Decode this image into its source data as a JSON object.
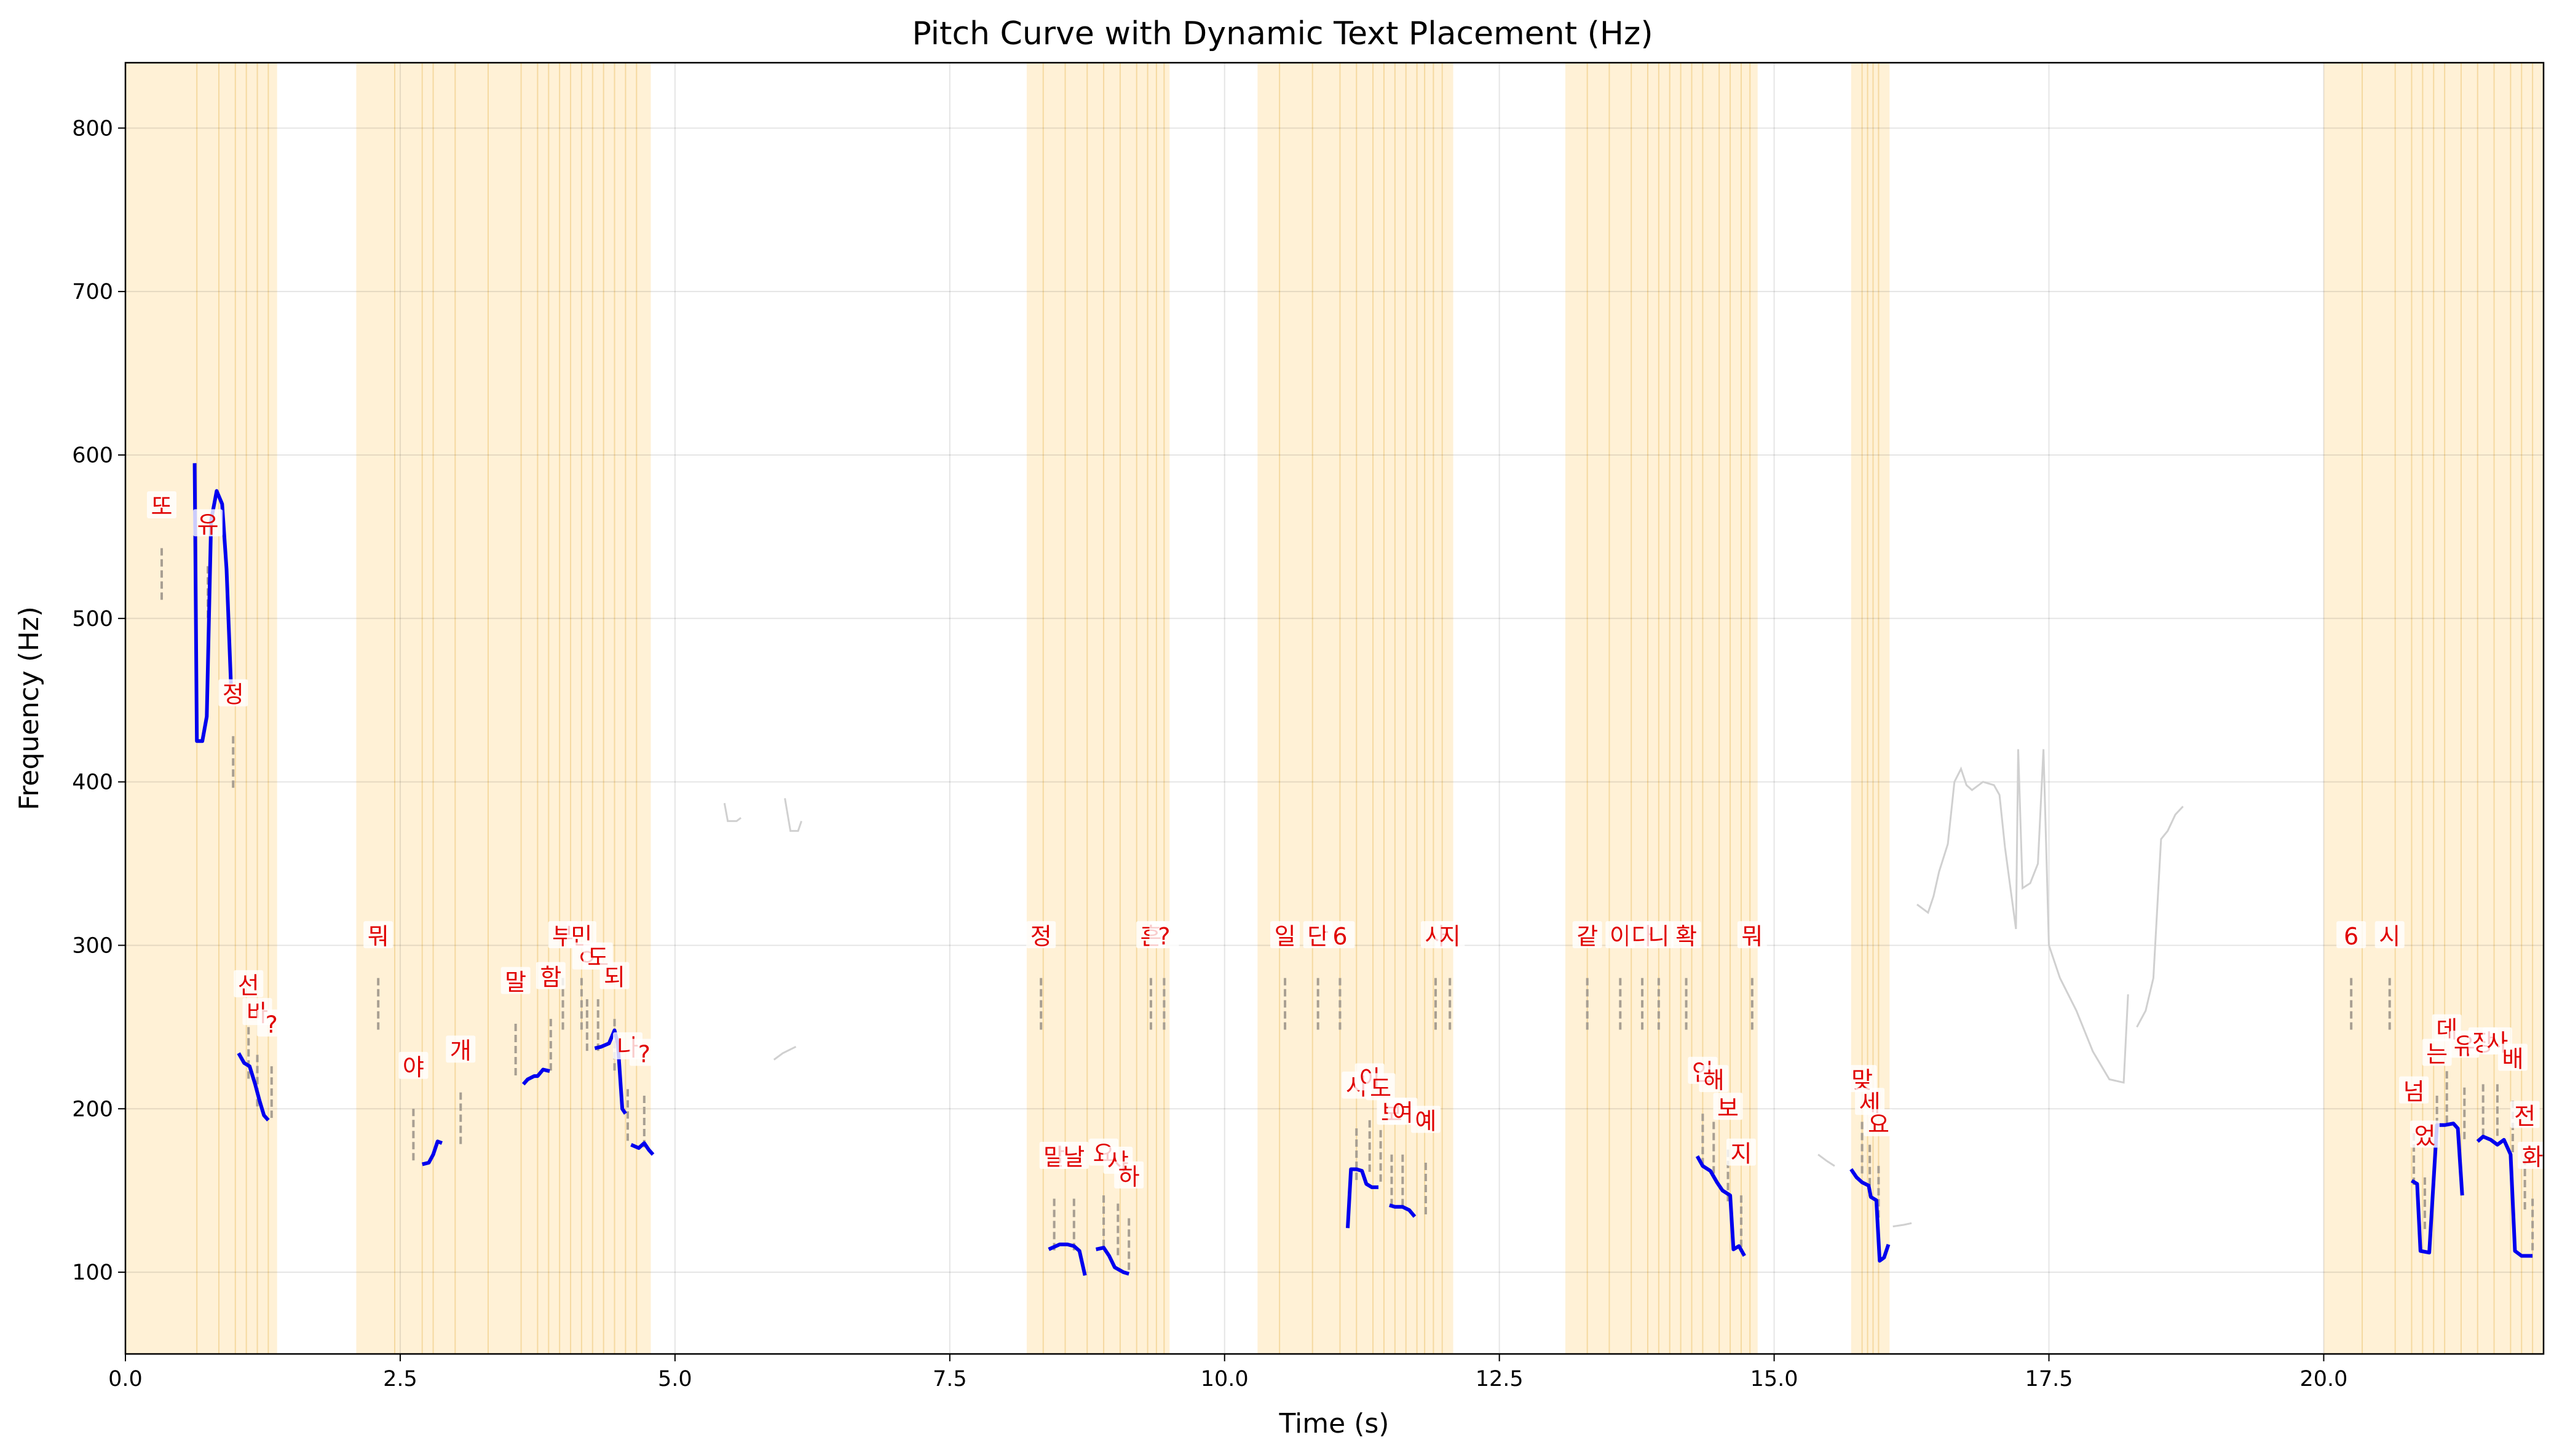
{
  "chart_data": {
    "type": "line",
    "title": "Pitch Curve with Dynamic Text Placement (Hz)",
    "xlabel": "Time (s)",
    "ylabel": "Frequency (Hz)",
    "xlim": [
      0,
      22
    ],
    "ylim": [
      50,
      840
    ],
    "xticks": [
      0.0,
      2.5,
      5.0,
      7.5,
      10.0,
      12.5,
      15.0,
      17.5,
      20.0
    ],
    "xtick_labels": [
      "0.0",
      "2.5",
      "5.0",
      "7.5",
      "10.0",
      "12.5",
      "15.0",
      "17.5",
      "20.0"
    ],
    "yticks": [
      100,
      200,
      300,
      400,
      500,
      600,
      700,
      800
    ],
    "ytick_labels": [
      "100",
      "200",
      "300",
      "400",
      "500",
      "600",
      "700",
      "800"
    ],
    "grid": true,
    "colors": {
      "voiced": "#0000ee",
      "unvoiced": "#d0d0d0",
      "span": "#fff1d6",
      "span_line": "#f5d9a0",
      "syllable_text": "#e00000",
      "marker": "#a89f92"
    },
    "voiced_segments": [
      [
        [
          0.63,
          595
        ],
        [
          0.65,
          425
        ],
        [
          0.7,
          425
        ],
        [
          0.74,
          440
        ],
        [
          0.78,
          560
        ],
        [
          0.83,
          578
        ],
        [
          0.88,
          570
        ],
        [
          0.92,
          530
        ],
        [
          0.96,
          460
        ]
      ],
      [
        [
          1.03,
          234
        ],
        [
          1.08,
          228
        ],
        [
          1.13,
          226
        ],
        [
          1.18,
          215
        ],
        [
          1.22,
          205
        ],
        [
          1.26,
          196
        ],
        [
          1.3,
          193
        ]
      ],
      [
        [
          2.7,
          166
        ],
        [
          2.76,
          167
        ],
        [
          2.8,
          172
        ],
        [
          2.84,
          180
        ],
        [
          2.88,
          179
        ]
      ],
      [
        [
          3.62,
          215
        ],
        [
          3.66,
          218
        ],
        [
          3.72,
          220
        ],
        [
          3.75,
          220
        ],
        [
          3.8,
          224
        ],
        [
          3.86,
          223
        ]
      ],
      [
        [
          4.27,
          237
        ],
        [
          4.33,
          238
        ],
        [
          4.4,
          240
        ],
        [
          4.45,
          248
        ],
        [
          4.48,
          240
        ],
        [
          4.52,
          200
        ],
        [
          4.55,
          197
        ]
      ],
      [
        [
          4.6,
          178
        ],
        [
          4.67,
          176
        ],
        [
          4.72,
          179
        ],
        [
          4.76,
          175
        ],
        [
          4.8,
          172
        ]
      ],
      [
        [
          8.4,
          114
        ],
        [
          8.5,
          117
        ],
        [
          8.57,
          117
        ],
        [
          8.63,
          116
        ],
        [
          8.68,
          113
        ],
        [
          8.73,
          98
        ]
      ],
      [
        [
          8.83,
          114
        ],
        [
          8.9,
          115
        ],
        [
          8.95,
          110
        ],
        [
          9.0,
          103
        ],
        [
          9.08,
          100
        ],
        [
          9.13,
          99
        ]
      ],
      [
        [
          11.12,
          127
        ],
        [
          11.15,
          163
        ],
        [
          11.2,
          163
        ],
        [
          11.25,
          162
        ],
        [
          11.29,
          154
        ],
        [
          11.34,
          152
        ],
        [
          11.4,
          152
        ]
      ],
      [
        [
          11.5,
          141
        ],
        [
          11.55,
          140
        ],
        [
          11.62,
          140
        ],
        [
          11.68,
          138
        ],
        [
          11.73,
          134
        ]
      ],
      [
        [
          14.3,
          171
        ],
        [
          14.35,
          165
        ],
        [
          14.42,
          162
        ],
        [
          14.48,
          155
        ],
        [
          14.53,
          150
        ],
        [
          14.6,
          147
        ],
        [
          14.63,
          114
        ],
        [
          14.68,
          116
        ],
        [
          14.73,
          110
        ]
      ],
      [
        [
          15.7,
          163
        ],
        [
          15.75,
          158
        ],
        [
          15.8,
          155
        ],
        [
          15.86,
          153
        ],
        [
          15.88,
          146
        ],
        [
          15.93,
          144
        ],
        [
          15.96,
          107
        ],
        [
          16.0,
          109
        ],
        [
          16.04,
          117
        ]
      ],
      [
        [
          20.8,
          156
        ],
        [
          20.85,
          154
        ],
        [
          20.88,
          113
        ],
        [
          20.96,
          112
        ],
        [
          21.03,
          190
        ],
        [
          21.1,
          190
        ],
        [
          21.18,
          191
        ],
        [
          21.22,
          188
        ],
        [
          21.26,
          147
        ]
      ],
      [
        [
          21.4,
          180
        ],
        [
          21.45,
          183
        ],
        [
          21.52,
          181
        ],
        [
          21.58,
          178
        ],
        [
          21.64,
          181
        ],
        [
          21.7,
          172
        ],
        [
          21.74,
          113
        ],
        [
          21.8,
          110
        ],
        [
          21.9,
          110
        ]
      ]
    ],
    "unvoiced_segments": [
      [
        [
          5.45,
          387
        ],
        [
          5.48,
          376
        ],
        [
          5.56,
          376
        ],
        [
          5.6,
          378
        ]
      ],
      [
        [
          6.0,
          390
        ],
        [
          6.05,
          370
        ],
        [
          6.12,
          370
        ],
        [
          6.15,
          376
        ]
      ],
      [
        [
          5.9,
          230
        ],
        [
          5.98,
          234
        ],
        [
          6.1,
          238
        ]
      ],
      [
        [
          15.4,
          172
        ],
        [
          15.48,
          168
        ],
        [
          15.55,
          165
        ]
      ],
      [
        [
          16.08,
          128
        ],
        [
          16.18,
          129
        ],
        [
          16.25,
          130
        ]
      ],
      [
        [
          16.3,
          325
        ],
        [
          16.4,
          320
        ],
        [
          16.45,
          330
        ],
        [
          16.5,
          345
        ],
        [
          16.58,
          362
        ],
        [
          16.64,
          400
        ],
        [
          16.7,
          408
        ],
        [
          16.75,
          398
        ],
        [
          16.8,
          395
        ],
        [
          16.9,
          400
        ],
        [
          17.0,
          398
        ],
        [
          17.05,
          392
        ],
        [
          17.1,
          360
        ],
        [
          17.16,
          330
        ],
        [
          17.2,
          310
        ],
        [
          17.22,
          420
        ],
        [
          17.26,
          335
        ],
        [
          17.33,
          338
        ],
        [
          17.4,
          350
        ],
        [
          17.45,
          420
        ],
        [
          17.5,
          300
        ],
        [
          17.6,
          280
        ],
        [
          17.75,
          260
        ],
        [
          17.9,
          235
        ],
        [
          18.05,
          218
        ],
        [
          18.18,
          216
        ],
        [
          18.22,
          270
        ]
      ],
      [
        [
          18.3,
          250
        ],
        [
          18.38,
          260
        ],
        [
          18.45,
          280
        ],
        [
          18.52,
          365
        ],
        [
          18.58,
          370
        ],
        [
          18.65,
          380
        ],
        [
          18.72,
          385
        ]
      ]
    ],
    "highlight_spans": [
      [
        0.0,
        1.38
      ],
      [
        2.1,
        4.78
      ],
      [
        8.2,
        9.5
      ],
      [
        10.3,
        12.08
      ],
      [
        13.1,
        14.85
      ],
      [
        15.7,
        16.05
      ],
      [
        20.0,
        22.0
      ]
    ],
    "span_lines": [
      0.65,
      0.85,
      1.0,
      1.1,
      1.2,
      1.3,
      2.45,
      2.7,
      2.8,
      3.0,
      3.3,
      3.6,
      3.75,
      3.85,
      3.95,
      4.05,
      4.15,
      4.25,
      4.35,
      4.45,
      4.55,
      4.65,
      8.35,
      8.55,
      8.75,
      8.9,
      9.05,
      9.2,
      9.3,
      9.38,
      9.45,
      10.5,
      10.8,
      11.05,
      11.2,
      11.35,
      11.45,
      11.55,
      11.65,
      11.75,
      11.82,
      11.9,
      11.98,
      13.3,
      13.5,
      13.7,
      13.85,
      13.95,
      14.05,
      14.15,
      14.25,
      14.35,
      14.5,
      14.6,
      14.7,
      14.78,
      15.8,
      15.85,
      15.9,
      15.95,
      20.35,
      20.65,
      20.8,
      20.9,
      21.0,
      21.1,
      21.25,
      21.4,
      21.55,
      21.7,
      21.8,
      21.9
    ],
    "syllables": [
      {
        "text": "또",
        "x": 0.33,
        "y": 568
      },
      {
        "text": "유",
        "x": 0.75,
        "y": 557
      },
      {
        "text": "정",
        "x": 0.98,
        "y": 453
      },
      {
        "text": "선",
        "x": 1.12,
        "y": 275
      },
      {
        "text": "바",
        "x": 1.2,
        "y": 258
      },
      {
        "text": "?",
        "x": 1.33,
        "y": 251
      },
      {
        "text": "뭐",
        "x": 2.3,
        "y": 305
      },
      {
        "text": "야",
        "x": 2.62,
        "y": 225
      },
      {
        "text": "개",
        "x": 3.05,
        "y": 235
      },
      {
        "text": "말",
        "x": 3.55,
        "y": 277
      },
      {
        "text": "함",
        "x": 3.87,
        "y": 280
      },
      {
        "text": "부",
        "x": 3.98,
        "y": 305
      },
      {
        "text": "민",
        "x": 4.15,
        "y": 305
      },
      {
        "text": "ㅇ",
        "x": 4.2,
        "y": 292
      },
      {
        "text": "도",
        "x": 4.3,
        "y": 292
      },
      {
        "text": "되",
        "x": 4.45,
        "y": 280
      },
      {
        "text": "나",
        "x": 4.57,
        "y": 237
      },
      {
        "text": "?",
        "x": 4.72,
        "y": 233
      },
      {
        "text": "정",
        "x": 8.33,
        "y": 305
      },
      {
        "text": "말",
        "x": 8.45,
        "y": 170
      },
      {
        "text": "날",
        "x": 8.63,
        "y": 170
      },
      {
        "text": "요",
        "x": 8.9,
        "y": 172
      },
      {
        "text": "샤",
        "x": 9.03,
        "y": 167
      },
      {
        "text": "하",
        "x": 9.13,
        "y": 158
      },
      {
        "text": "흔",
        "x": 9.33,
        "y": 305
      },
      {
        "text": "?",
        "x": 9.45,
        "y": 305
      },
      {
        "text": "일",
        "x": 10.55,
        "y": 305
      },
      {
        "text": "단",
        "x": 10.85,
        "y": 305
      },
      {
        "text": "6",
        "x": 11.05,
        "y": 305
      },
      {
        "text": "시",
        "x": 11.2,
        "y": 213
      },
      {
        "text": "이",
        "x": 11.32,
        "y": 218
      },
      {
        "text": "도",
        "x": 11.42,
        "y": 212
      },
      {
        "text": "보",
        "x": 11.52,
        "y": 197
      },
      {
        "text": "여",
        "x": 11.62,
        "y": 197
      },
      {
        "text": "예",
        "x": 11.83,
        "y": 192
      },
      {
        "text": "사",
        "x": 11.92,
        "y": 305
      },
      {
        "text": "지",
        "x": 12.05,
        "y": 305
      },
      {
        "text": "같",
        "x": 13.3,
        "y": 305
      },
      {
        "text": "이",
        "x": 13.6,
        "y": 305
      },
      {
        "text": "다",
        "x": 13.8,
        "y": 305
      },
      {
        "text": "니",
        "x": 13.95,
        "y": 305
      },
      {
        "text": "확",
        "x": 14.2,
        "y": 305
      },
      {
        "text": "인",
        "x": 14.35,
        "y": 222
      },
      {
        "text": "해",
        "x": 14.45,
        "y": 217
      },
      {
        "text": "보",
        "x": 14.58,
        "y": 200
      },
      {
        "text": "지",
        "x": 14.7,
        "y": 172
      },
      {
        "text": "뭐",
        "x": 14.8,
        "y": 305
      },
      {
        "text": "맞",
        "x": 15.8,
        "y": 217
      },
      {
        "text": "세",
        "x": 15.87,
        "y": 203
      },
      {
        "text": "요",
        "x": 15.95,
        "y": 190
      },
      {
        "text": "6",
        "x": 20.25,
        "y": 305
      },
      {
        "text": "시",
        "x": 20.6,
        "y": 305
      },
      {
        "text": "넘",
        "x": 20.82,
        "y": 210
      },
      {
        "text": "었",
        "x": 20.92,
        "y": 183
      },
      {
        "text": "는",
        "x": 21.03,
        "y": 233
      },
      {
        "text": "데",
        "x": 21.12,
        "y": 248
      },
      {
        "text": "유",
        "x": 21.28,
        "y": 238
      },
      {
        "text": "장",
        "x": 21.45,
        "y": 240
      },
      {
        "text": "사",
        "x": 21.58,
        "y": 240
      },
      {
        "text": "배",
        "x": 21.72,
        "y": 230
      },
      {
        "text": "전",
        "x": 21.83,
        "y": 195
      },
      {
        "text": "화",
        "x": 21.9,
        "y": 170
      }
    ]
  }
}
